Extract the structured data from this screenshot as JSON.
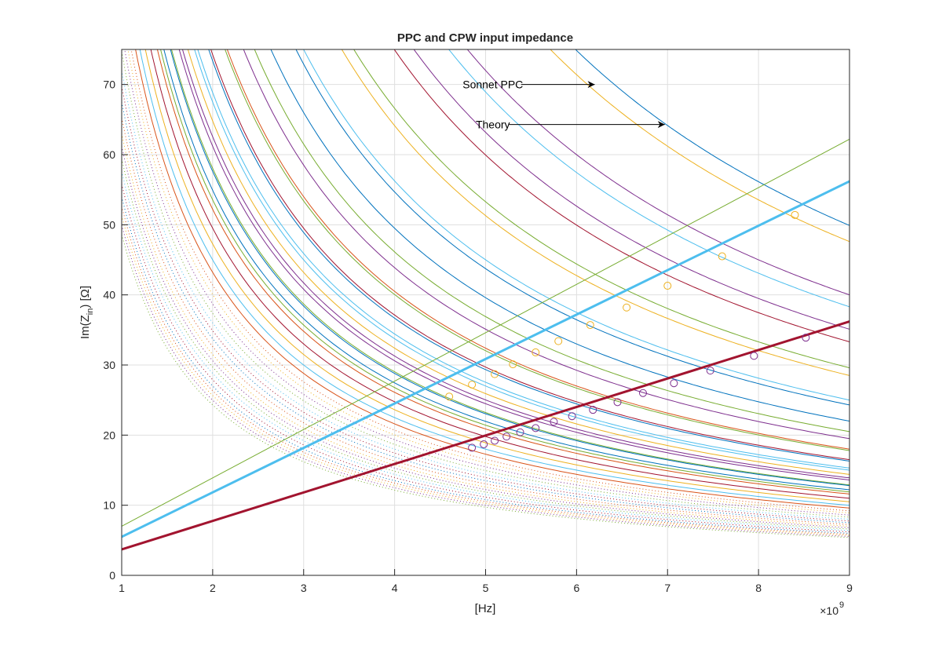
{
  "chart_data": {
    "type": "line",
    "title": "PPC and CPW input impedance",
    "xlabel": "[Hz]",
    "ylabel_main": "Im(Z",
    "ylabel_sub": "in",
    "ylabel_tail": ") [Ω]",
    "x_exponent_base": "×10",
    "x_exponent_power": "9",
    "xlim": [
      1,
      9
    ],
    "ylim": [
      0,
      75
    ],
    "x_scale": 1000000000.0,
    "xticks": [
      "1",
      "2",
      "3",
      "4",
      "5",
      "6",
      "7",
      "8",
      "9"
    ],
    "yticks": [
      "0",
      "10",
      "20",
      "30",
      "40",
      "50",
      "60",
      "70"
    ],
    "grid": true,
    "annotations": [
      {
        "text": "Sonnet PPC",
        "x": 5.08,
        "y": 70,
        "arrow_to": [
          6.2,
          70
        ]
      },
      {
        "text": "Theory",
        "x": 5.08,
        "y": 64.3,
        "arrow_to": [
          6.97,
          64.3
        ]
      }
    ],
    "series": [
      {
        "kind": "cpw-line",
        "x": [
          1,
          9
        ],
        "y": [
          7.0,
          62.2
        ],
        "color": "#77AC30",
        "width": 1
      },
      {
        "kind": "cpw-line",
        "x": [
          1,
          9
        ],
        "y": [
          5.5,
          56.2
        ],
        "color": "#4DBEEE",
        "width": 3
      },
      {
        "kind": "cpw-line",
        "x": [
          1,
          9
        ],
        "y": [
          3.7,
          36.2
        ],
        "color": "#A2142F",
        "width": 3
      },
      {
        "kind": "markers",
        "color": "#EDB120",
        "x": [
          4.6,
          4.85,
          5.1,
          5.3,
          5.55,
          5.8,
          6.15,
          6.55,
          7.0,
          7.6,
          8.4
        ],
        "y": [
          25.5,
          27.2,
          28.7,
          30.1,
          31.8,
          33.4,
          35.7,
          38.2,
          41.3,
          45.5,
          51.4
        ]
      },
      {
        "kind": "markers",
        "color": "#7E2F8E",
        "x": [
          4.85,
          4.98,
          5.1,
          5.23,
          5.38,
          5.55,
          5.75,
          5.95,
          6.18,
          6.45,
          6.73,
          7.07,
          7.47,
          7.95,
          8.52
        ],
        "y": [
          18.2,
          18.7,
          19.2,
          19.8,
          20.4,
          21.0,
          21.9,
          22.7,
          23.6,
          24.7,
          26.0,
          27.4,
          29.2,
          31.3,
          33.9
        ]
      },
      {
        "kind": "sonnet-curves",
        "values_at_9GHz": [
          47.6,
          38.3,
          33.3,
          28.5,
          24.3,
          20.5,
          18.0,
          16.5,
          15.3,
          14.4,
          13.6,
          12.9,
          12.2,
          11.6,
          11.0,
          10.5,
          10.0,
          9.6
        ],
        "colors": [
          "#EDB120",
          "#4DBEEE",
          "#A2142F",
          "#EDB120",
          "#0072BD",
          "#77AC30",
          "#D95319",
          "#A2142F",
          "#4DBEEE",
          "#EDB120",
          "#7E2F8E",
          "#77AC30",
          "#0072BD",
          "#D95319",
          "#A2142F",
          "#EDB120",
          "#4DBEEE",
          "#D95319"
        ]
      },
      {
        "kind": "theory-curves",
        "values_at_9GHz": [
          49.9,
          40.0,
          35.1,
          29.6,
          25.0,
          22.0,
          19.5,
          17.8,
          16.3,
          15.0,
          13.9,
          12.8,
          11.9
        ],
        "colors": [
          "#0072BD",
          "#7E2F8E",
          "#7E2F8E",
          "#77AC30",
          "#4DBEEE",
          "#0072BD",
          "#7E2F8E",
          "#77AC30",
          "#0072BD",
          "#4DBEEE",
          "#7E2F8E",
          "#0072BD",
          "#77AC30"
        ]
      },
      {
        "kind": "dotted-curves",
        "values_at_9GHz": [
          9.2,
          8.9,
          8.6,
          8.3,
          8.0,
          7.75,
          7.5,
          7.25,
          7.0,
          6.8,
          6.6,
          6.4,
          6.2,
          6.0,
          5.85,
          5.7,
          5.55,
          5.4
        ],
        "colors": [
          "#D95319",
          "#EDB120",
          "#7E2F8E",
          "#77AC30",
          "#4DBEEE",
          "#A2142F",
          "#0072BD"
        ]
      }
    ]
  }
}
